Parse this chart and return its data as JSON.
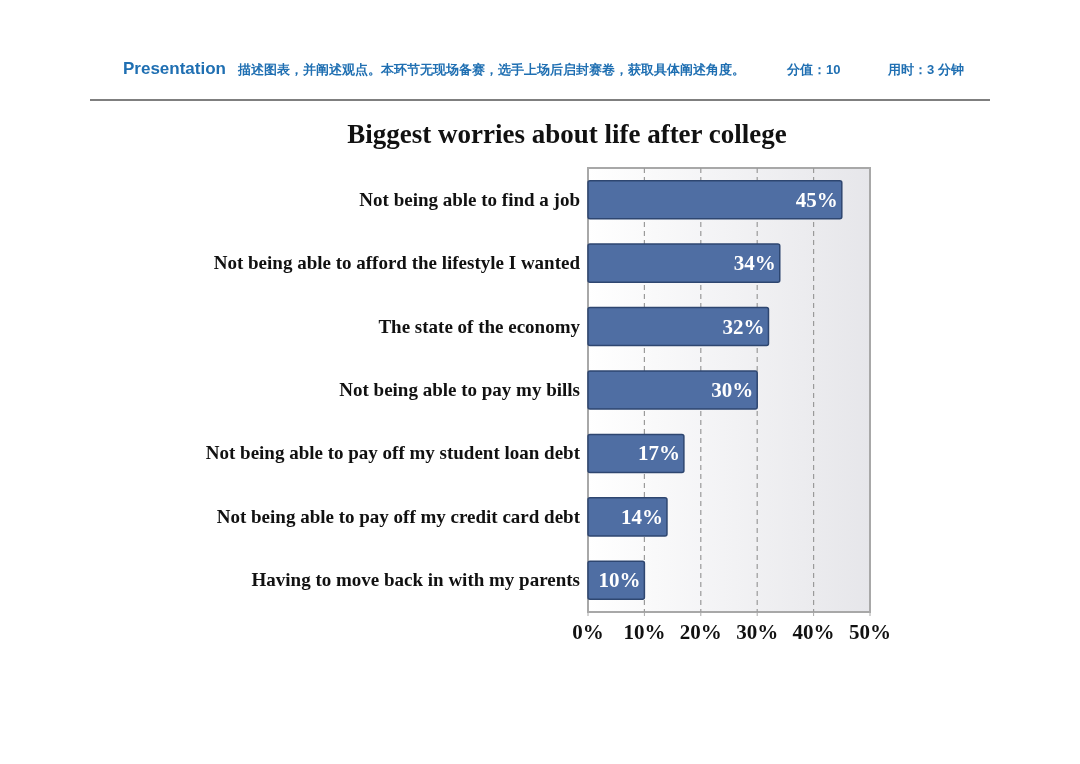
{
  "chart_data": {
    "type": "bar",
    "orientation": "horizontal",
    "title": "Biggest worries about life after college",
    "annotations": [
      "Presentation",
      "描述图表，并阐述观点。本环节无现场备赛，选手上场后启封赛卷，获取具体阐述角度。",
      "分值：10",
      "用时：3 分钟"
    ],
    "categories": [
      "Not being able to find a job",
      "Not being able to afford the lifestyle I wanted",
      "The state of the economy",
      "Not being able to pay my bills",
      "Not being able to pay off my student loan debt",
      "Not being able to pay off my credit card debt",
      "Having to move back in with my parents"
    ],
    "values": [
      45,
      34,
      32,
      30,
      17,
      14,
      10
    ],
    "value_labels": [
      "45%",
      "34%",
      "32%",
      "30%",
      "17%",
      "14%",
      "10%"
    ],
    "color": "#4f6ea3",
    "xlim": [
      0,
      50
    ],
    "xticks": [
      {
        "value": 0,
        "label": "0%"
      },
      {
        "value": 10,
        "label": "10%"
      },
      {
        "value": 20,
        "label": "20%"
      },
      {
        "value": 30,
        "label": "30%"
      },
      {
        "value": 40,
        "label": "40%"
      },
      {
        "value": 50,
        "label": "50%"
      }
    ],
    "grid": "x"
  }
}
